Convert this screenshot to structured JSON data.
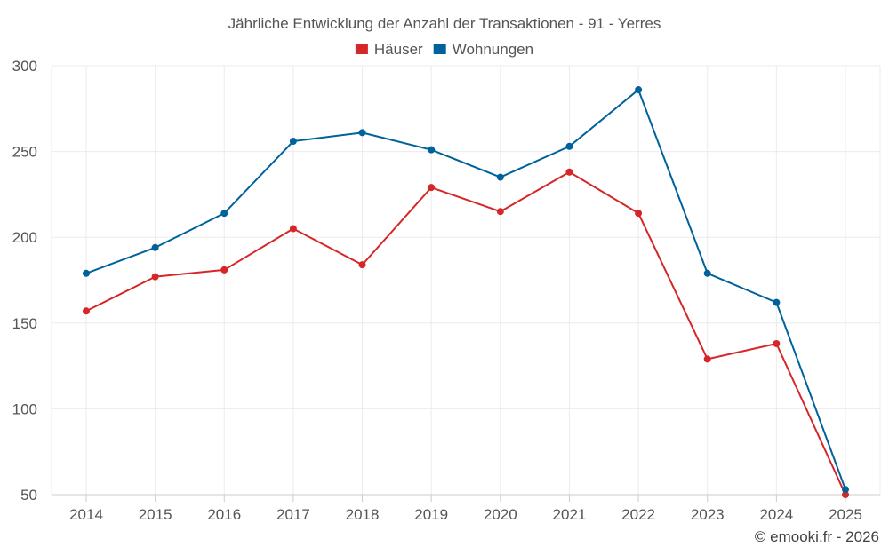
{
  "chart_data": {
    "type": "line",
    "title": "Jährliche Entwicklung der Anzahl der Transaktionen - 91 - Yerres",
    "xlabel": "",
    "ylabel": "",
    "categories": [
      "2014",
      "2015",
      "2016",
      "2017",
      "2018",
      "2019",
      "2020",
      "2021",
      "2022",
      "2023",
      "2024",
      "2025"
    ],
    "ylim": [
      50,
      300
    ],
    "yticks": [
      50,
      100,
      150,
      200,
      250,
      300
    ],
    "grid": true,
    "legend_position": "top-center",
    "series": [
      {
        "name": "Häuser",
        "color": "#d62728",
        "values": [
          157,
          177,
          181,
          205,
          184,
          229,
          215,
          238,
          214,
          129,
          138,
          50
        ]
      },
      {
        "name": "Wohnungen",
        "color": "#00629b",
        "values": [
          179,
          194,
          214,
          256,
          261,
          251,
          235,
          253,
          286,
          179,
          162,
          53
        ]
      }
    ]
  },
  "credit": "© emooki.fr - 2026"
}
